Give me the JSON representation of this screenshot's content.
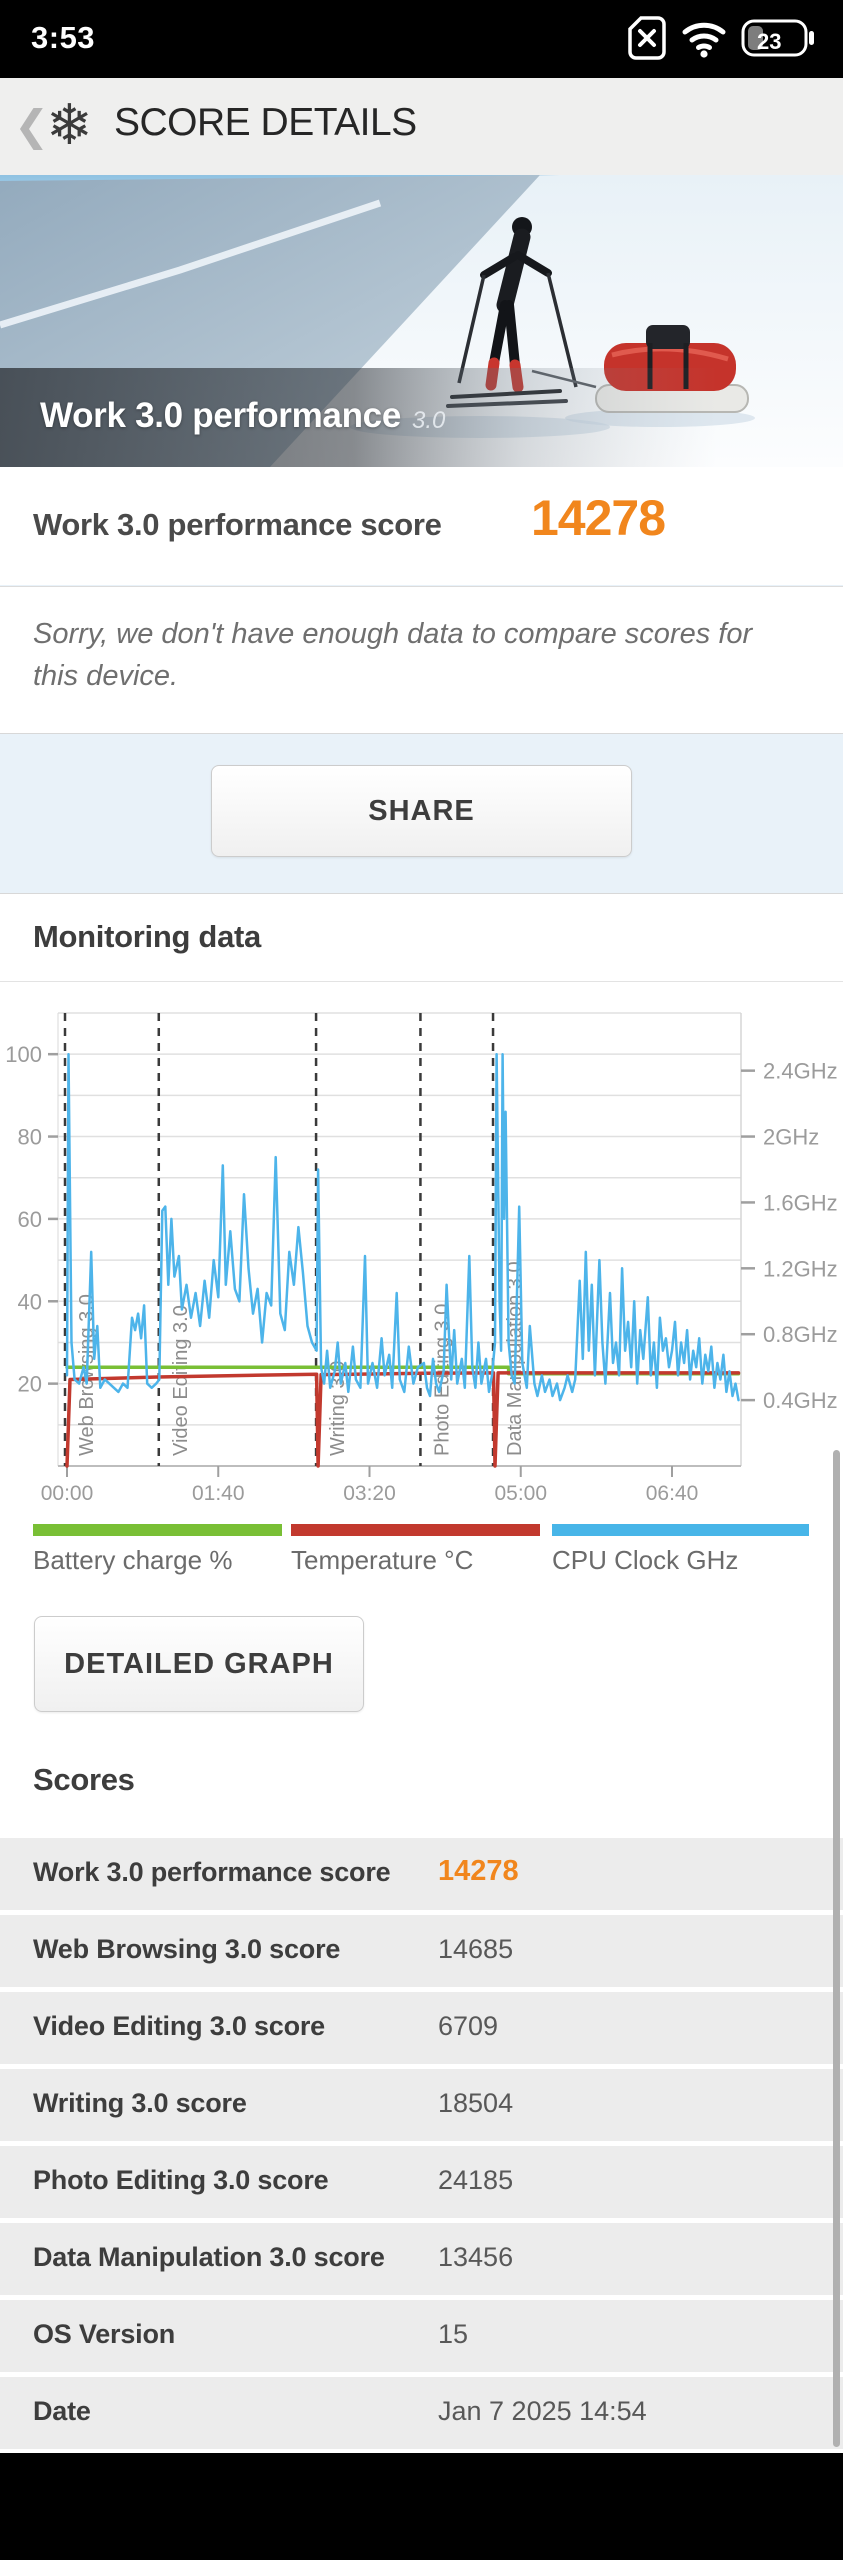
{
  "status_bar": {
    "time": "3:53",
    "battery_level": "23"
  },
  "header": {
    "title": "SCORE DETAILS"
  },
  "hero": {
    "title": "Work 3.0 performance",
    "version_tag": "3.0"
  },
  "summary": {
    "label": "Work 3.0 performance score",
    "value": "14278",
    "accent_color": "#f1861d",
    "note": "Sorry, we don't have enough data to compare scores for this device."
  },
  "buttons": {
    "share": "SHARE",
    "detailed_graph": "DETAILED GRAPH"
  },
  "monitoring": {
    "title": "Monitoring data",
    "legend": [
      {
        "label": "Battery charge %",
        "color": "#79bf35"
      },
      {
        "label": "Temperature °C",
        "color": "#c2392e"
      },
      {
        "label": "CPU Clock GHz",
        "color": "#47b5e8"
      }
    ]
  },
  "scores": {
    "title": "Scores",
    "rows": [
      {
        "label": "Work 3.0 performance score",
        "value": "14278",
        "accent": true
      },
      {
        "label": "Web Browsing 3.0 score",
        "value": "14685",
        "accent": false
      },
      {
        "label": "Video Editing 3.0 score",
        "value": "6709",
        "accent": false
      },
      {
        "label": "Writing 3.0 score",
        "value": "18504",
        "accent": false
      },
      {
        "label": "Photo Editing 3.0 score",
        "value": "24185",
        "accent": false
      },
      {
        "label": "Data Manipulation 3.0 score",
        "value": "13456",
        "accent": false
      },
      {
        "label": "OS Version",
        "value": "15",
        "accent": false
      },
      {
        "label": "Date",
        "value": "Jan 7 2025 14:54",
        "accent": false
      }
    ]
  },
  "chart_data": {
    "type": "line",
    "title": "Monitoring data",
    "x_axis": {
      "unit": "mm:ss",
      "ticks": [
        {
          "t": 0,
          "label": "00:00"
        },
        {
          "t": 100,
          "label": "01:40"
        },
        {
          "t": 200,
          "label": "03:20"
        },
        {
          "t": 300,
          "label": "05:00"
        },
        {
          "t": 400,
          "label": "06:40"
        }
      ]
    },
    "left_axis": {
      "ticks": [
        20,
        40,
        60,
        80,
        100
      ],
      "min": 0,
      "max": 110,
      "grid_step": 10
    },
    "right_axis": {
      "ticks": [
        {
          "label": "0.4GHz",
          "left_scale": 16
        },
        {
          "label": "0.8GHz",
          "left_scale": 32
        },
        {
          "label": "1.2GHz",
          "left_scale": 48
        },
        {
          "label": "1.6GHz",
          "left_scale": 64
        },
        {
          "label": "2GHz",
          "left_scale": 80
        },
        {
          "label": "2.4GHz",
          "left_scale": 96
        }
      ]
    },
    "segments": [
      {
        "label": "Web Browsing 3.0",
        "t": 0
      },
      {
        "label": "Video Editing 3.0",
        "t": 62
      },
      {
        "label": "Writing 3.0",
        "t": 166
      },
      {
        "label": "Photo Editing 3.0",
        "t": 235
      },
      {
        "label": "Data Manipulation 3.0",
        "t": 283
      }
    ],
    "series": [
      {
        "name": "Battery charge %",
        "color": "#79bf35",
        "width": 3.5,
        "points": [
          [
            0,
            24
          ],
          [
            292,
            24
          ],
          [
            292,
            22.4
          ],
          [
            444,
            22.4
          ]
        ]
      },
      {
        "name": "Temperature °C",
        "color": "#c2392e",
        "width": 3.5,
        "points": [
          [
            0,
            0
          ],
          [
            2,
            21
          ],
          [
            60,
            21.6
          ],
          [
            120,
            22
          ],
          [
            165,
            22.3
          ],
          [
            166,
            0
          ],
          [
            168,
            22.2
          ],
          [
            235,
            22.5
          ],
          [
            282,
            22.6
          ],
          [
            283,
            0
          ],
          [
            285,
            22.6
          ],
          [
            444,
            22.6
          ]
        ]
      },
      {
        "name": "CPU Clock GHz",
        "color": "#4db4ea",
        "width": 2.5,
        "points": [
          [
            0,
            22
          ],
          [
            1,
            100
          ],
          [
            3,
            30
          ],
          [
            5,
            21
          ],
          [
            8,
            20
          ],
          [
            11,
            24
          ],
          [
            13,
            20
          ],
          [
            16,
            52
          ],
          [
            18,
            26
          ],
          [
            20,
            34
          ],
          [
            22,
            19
          ],
          [
            25,
            21
          ],
          [
            28,
            20
          ],
          [
            31,
            19
          ],
          [
            34,
            18
          ],
          [
            37,
            20
          ],
          [
            40,
            19
          ],
          [
            43,
            36
          ],
          [
            45,
            33
          ],
          [
            47,
            37
          ],
          [
            49,
            31
          ],
          [
            51,
            39
          ],
          [
            53,
            20
          ],
          [
            56,
            19
          ],
          [
            59,
            20
          ],
          [
            61,
            21
          ],
          [
            63,
            62
          ],
          [
            65,
            63
          ],
          [
            67,
            44
          ],
          [
            69,
            60
          ],
          [
            71,
            46
          ],
          [
            74,
            51
          ],
          [
            76,
            38
          ],
          [
            79,
            44
          ],
          [
            82,
            36
          ],
          [
            85,
            42
          ],
          [
            88,
            34
          ],
          [
            91,
            45
          ],
          [
            94,
            36
          ],
          [
            97,
            50
          ],
          [
            100,
            41
          ],
          [
            103,
            73
          ],
          [
            105,
            44
          ],
          [
            108,
            57
          ],
          [
            111,
            43
          ],
          [
            114,
            40
          ],
          [
            117,
            66
          ],
          [
            120,
            48
          ],
          [
            123,
            37
          ],
          [
            126,
            43
          ],
          [
            129,
            30
          ],
          [
            132,
            42
          ],
          [
            135,
            39
          ],
          [
            138,
            75
          ],
          [
            141,
            37
          ],
          [
            144,
            33
          ],
          [
            147,
            52
          ],
          [
            150,
            44
          ],
          [
            153,
            58
          ],
          [
            156,
            47
          ],
          [
            159,
            34
          ],
          [
            162,
            30
          ],
          [
            165,
            28
          ],
          [
            166,
            72
          ],
          [
            168,
            24
          ],
          [
            170,
            20
          ],
          [
            172,
            28
          ],
          [
            174,
            19
          ],
          [
            177,
            23
          ],
          [
            179,
            30
          ],
          [
            181,
            20
          ],
          [
            184,
            25
          ],
          [
            186,
            18
          ],
          [
            189,
            29
          ],
          [
            191,
            21
          ],
          [
            194,
            19
          ],
          [
            197,
            51
          ],
          [
            199,
            20
          ],
          [
            202,
            25
          ],
          [
            205,
            19
          ],
          [
            208,
            31
          ],
          [
            210,
            22
          ],
          [
            213,
            27
          ],
          [
            215,
            19
          ],
          [
            218,
            42
          ],
          [
            220,
            21
          ],
          [
            223,
            18
          ],
          [
            226,
            29
          ],
          [
            229,
            20
          ],
          [
            232,
            24
          ],
          [
            236,
            25
          ],
          [
            238,
            19
          ],
          [
            240,
            17
          ],
          [
            242,
            26
          ],
          [
            244,
            20
          ],
          [
            246,
            18
          ],
          [
            249,
            23
          ],
          [
            251,
            44
          ],
          [
            254,
            21
          ],
          [
            256,
            33
          ],
          [
            258,
            20
          ],
          [
            261,
            26
          ],
          [
            263,
            19
          ],
          [
            266,
            51
          ],
          [
            268,
            24
          ],
          [
            270,
            19
          ],
          [
            272,
            30
          ],
          [
            274,
            20
          ],
          [
            277,
            26
          ],
          [
            279,
            18
          ],
          [
            281,
            22
          ],
          [
            283,
            30
          ],
          [
            284,
            100
          ],
          [
            286,
            40
          ],
          [
            287,
            28
          ],
          [
            288,
            100
          ],
          [
            289,
            60
          ],
          [
            290,
            86
          ],
          [
            292,
            30
          ],
          [
            294,
            22
          ],
          [
            296,
            20
          ],
          [
            299,
            63
          ],
          [
            301,
            25
          ],
          [
            304,
            19
          ],
          [
            306,
            34
          ],
          [
            309,
            20
          ],
          [
            311,
            17
          ],
          [
            314,
            22
          ],
          [
            316,
            18
          ],
          [
            319,
            21
          ],
          [
            321,
            17
          ],
          [
            324,
            20
          ],
          [
            326,
            16
          ],
          [
            329,
            19
          ],
          [
            331,
            22
          ],
          [
            334,
            18
          ],
          [
            336,
            21
          ],
          [
            339,
            45
          ],
          [
            341,
            26
          ],
          [
            343,
            52
          ],
          [
            345,
            28
          ],
          [
            347,
            44
          ],
          [
            349,
            22
          ],
          [
            352,
            50
          ],
          [
            354,
            30
          ],
          [
            356,
            20
          ],
          [
            359,
            42
          ],
          [
            361,
            25
          ],
          [
            363,
            30
          ],
          [
            365,
            22
          ],
          [
            367,
            48
          ],
          [
            369,
            28
          ],
          [
            371,
            35
          ],
          [
            373,
            24
          ],
          [
            375,
            40
          ],
          [
            377,
            20
          ],
          [
            379,
            33
          ],
          [
            381,
            26
          ],
          [
            384,
            41
          ],
          [
            386,
            22
          ],
          [
            388,
            30
          ],
          [
            390,
            19
          ],
          [
            392,
            36
          ],
          [
            394,
            28
          ],
          [
            396,
            31
          ],
          [
            398,
            24
          ],
          [
            400,
            28
          ],
          [
            402,
            35
          ],
          [
            404,
            22
          ],
          [
            406,
            30
          ],
          [
            408,
            25
          ],
          [
            410,
            33
          ],
          [
            412,
            21
          ],
          [
            414,
            28
          ],
          [
            416,
            24
          ],
          [
            418,
            31
          ],
          [
            420,
            20
          ],
          [
            422,
            27
          ],
          [
            424,
            23
          ],
          [
            426,
            29
          ],
          [
            428,
            19
          ],
          [
            430,
            25
          ],
          [
            432,
            21
          ],
          [
            434,
            27
          ],
          [
            436,
            18
          ],
          [
            438,
            23
          ],
          [
            440,
            17
          ],
          [
            442,
            20
          ],
          [
            444,
            16
          ]
        ]
      }
    ]
  }
}
